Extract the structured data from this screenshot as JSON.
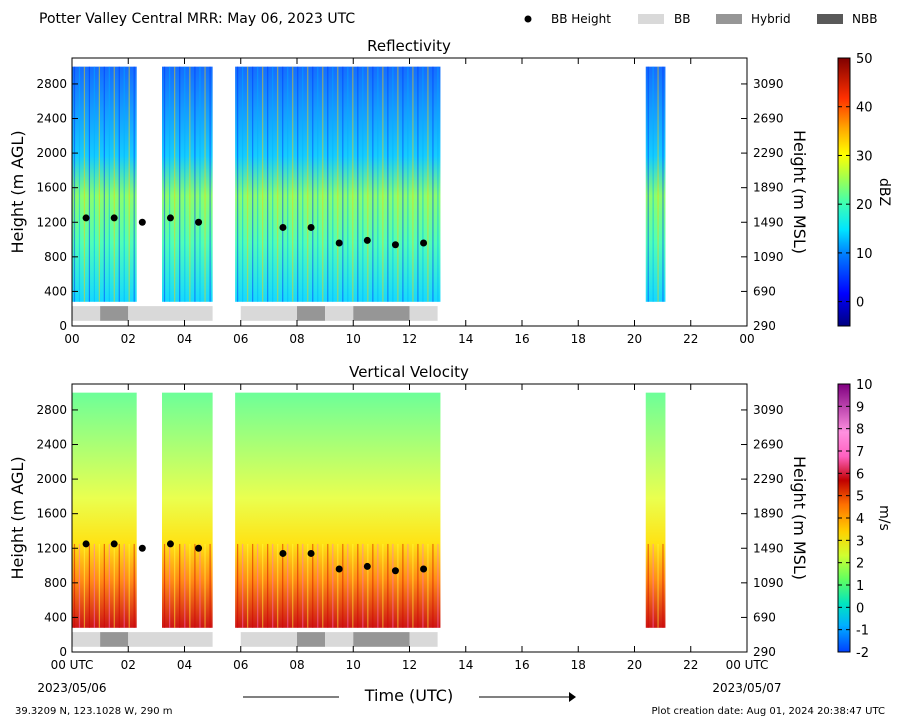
{
  "header": {
    "title": "Potter Valley Central MRR:  May 06, 2023 UTC",
    "legend": [
      {
        "label": "BB Height",
        "kind": "dot",
        "color": "#000000"
      },
      {
        "label": "BB",
        "kind": "box",
        "color": "#d9d9d9"
      },
      {
        "label": "Hybrid",
        "kind": "box",
        "color": "#969696"
      },
      {
        "label": "NBB",
        "kind": "box",
        "color": "#595959"
      }
    ]
  },
  "footer": {
    "location": "39.3209 N, 123.1028 W, 290 m",
    "creation": "Plot creation date: Aug 01, 2024 20:38:47 UTC",
    "time_label": "Time (UTC)",
    "start_label": "00 UTC",
    "start_date": "2023/05/06",
    "end_label": "00 UTC",
    "end_date": "2023/05/07"
  },
  "chart_data": [
    {
      "type": "heatmap",
      "title": "Reflectivity",
      "xlabel": "",
      "ylabel": "Height (m AGL)",
      "ylabel_right": "Height (m MSL)",
      "colorbar_label": "dBZ",
      "xlim": [
        0,
        24
      ],
      "ylim": [
        0,
        3100
      ],
      "x_ticks": [
        "00",
        "02",
        "04",
        "06",
        "08",
        "10",
        "12",
        "14",
        "16",
        "18",
        "20",
        "22",
        "00"
      ],
      "y_ticks": [
        0,
        400,
        800,
        1200,
        1600,
        2000,
        2400,
        2800
      ],
      "y_ticks_right": [
        "290",
        "690",
        "1090",
        "1490",
        "1890",
        "2290",
        "2690",
        "3090"
      ],
      "colorbar_range": [
        -5,
        50
      ],
      "colorbar_ticks": [
        0,
        10,
        20,
        30,
        40,
        50
      ],
      "echo_periods_utc": [
        [
          0.0,
          2.3
        ],
        [
          3.2,
          5.0
        ],
        [
          5.8,
          13.1
        ],
        [
          20.4,
          21.1
        ]
      ],
      "bright_band_height_m": [
        {
          "t": 0.5,
          "h": 1250
        },
        {
          "t": 1.5,
          "h": 1250
        },
        {
          "t": 2.5,
          "h": 1200
        },
        {
          "t": 3.5,
          "h": 1250
        },
        {
          "t": 4.5,
          "h": 1200
        },
        {
          "t": 7.5,
          "h": 1140
        },
        {
          "t": 8.5,
          "h": 1140
        },
        {
          "t": 9.5,
          "h": 960
        },
        {
          "t": 10.5,
          "h": 990
        },
        {
          "t": 11.5,
          "h": 940
        },
        {
          "t": 12.5,
          "h": 960
        }
      ],
      "bb_classification": [
        {
          "start": 0.0,
          "end": 1.0,
          "class": "BB"
        },
        {
          "start": 1.0,
          "end": 2.0,
          "class": "Hybrid"
        },
        {
          "start": 2.0,
          "end": 5.0,
          "class": "BB"
        },
        {
          "start": 6.0,
          "end": 8.0,
          "class": "BB"
        },
        {
          "start": 8.0,
          "end": 9.0,
          "class": "Hybrid"
        },
        {
          "start": 9.0,
          "end": 10.0,
          "class": "BB"
        },
        {
          "start": 10.0,
          "end": 12.0,
          "class": "Hybrid"
        },
        {
          "start": 12.0,
          "end": 13.0,
          "class": "BB"
        }
      ]
    },
    {
      "type": "heatmap",
      "title": "Vertical Velocity",
      "xlabel": "Time (UTC)",
      "ylabel": "Height (m AGL)",
      "ylabel_right": "Height (m MSL)",
      "colorbar_label": "m/s",
      "xlim": [
        0,
        24
      ],
      "ylim": [
        0,
        3100
      ],
      "x_ticks": [
        "00 UTC",
        "02",
        "04",
        "06",
        "08",
        "10",
        "12",
        "14",
        "16",
        "18",
        "20",
        "22",
        "00 UTC"
      ],
      "y_ticks": [
        0,
        400,
        800,
        1200,
        1600,
        2000,
        2400,
        2800
      ],
      "y_ticks_right": [
        "290",
        "690",
        "1090",
        "1490",
        "1890",
        "2290",
        "2690",
        "3090"
      ],
      "colorbar_range": [
        -2,
        10
      ],
      "colorbar_ticks": [
        -2,
        -1,
        0,
        1,
        2,
        3,
        4,
        5,
        6,
        7,
        8,
        9,
        10
      ],
      "echo_periods_utc": [
        [
          0.0,
          2.3
        ],
        [
          3.2,
          5.0
        ],
        [
          5.8,
          13.1
        ],
        [
          20.4,
          21.1
        ]
      ],
      "bright_band_height_m": [
        {
          "t": 0.5,
          "h": 1250
        },
        {
          "t": 1.5,
          "h": 1250
        },
        {
          "t": 2.5,
          "h": 1200
        },
        {
          "t": 3.5,
          "h": 1250
        },
        {
          "t": 4.5,
          "h": 1200
        },
        {
          "t": 7.5,
          "h": 1140
        },
        {
          "t": 8.5,
          "h": 1140
        },
        {
          "t": 9.5,
          "h": 960
        },
        {
          "t": 10.5,
          "h": 990
        },
        {
          "t": 11.5,
          "h": 940
        },
        {
          "t": 12.5,
          "h": 960
        }
      ],
      "bb_classification": [
        {
          "start": 0.0,
          "end": 1.0,
          "class": "BB"
        },
        {
          "start": 1.0,
          "end": 2.0,
          "class": "Hybrid"
        },
        {
          "start": 2.0,
          "end": 5.0,
          "class": "BB"
        },
        {
          "start": 6.0,
          "end": 8.0,
          "class": "BB"
        },
        {
          "start": 8.0,
          "end": 9.0,
          "class": "Hybrid"
        },
        {
          "start": 9.0,
          "end": 10.0,
          "class": "BB"
        },
        {
          "start": 10.0,
          "end": 12.0,
          "class": "Hybrid"
        },
        {
          "start": 12.0,
          "end": 13.0,
          "class": "BB"
        }
      ]
    }
  ]
}
